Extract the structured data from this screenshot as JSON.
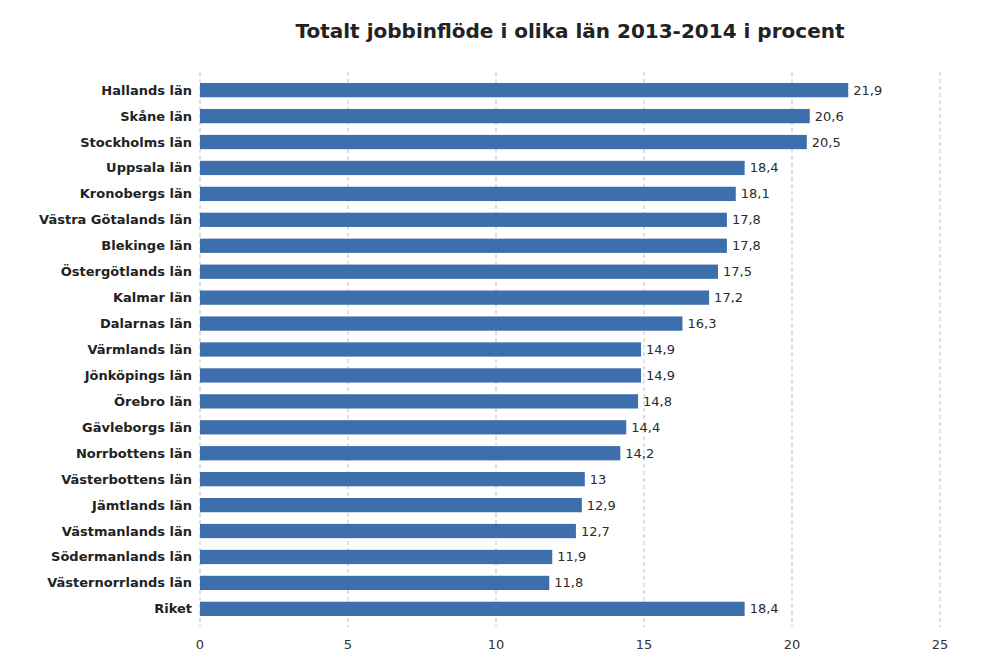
{
  "chart_data": {
    "type": "bar",
    "orientation": "horizontal",
    "title": "Totalt jobbinflöde i olika län 2013-2014 i procent",
    "categories": [
      "Riket",
      "Västernorrlands län",
      "Södermanlands län",
      "Västmanlands län",
      "Jämtlands län",
      "Västerbottens län",
      "Norrbottens län",
      "Gävleborgs län",
      "Örebro län",
      "Jönköpings län",
      "Värmlands län",
      "Dalarnas län",
      "Kalmar län",
      "Östergötlands län",
      "Blekinge län",
      "Västra Götalands län",
      "Kronobergs län",
      "Uppsala län",
      "Stockholms län",
      "Skåne län",
      "Hallands län"
    ],
    "values": [
      18.4,
      11.8,
      11.9,
      12.7,
      12.9,
      13.0,
      14.2,
      14.4,
      14.8,
      14.9,
      14.9,
      16.3,
      17.2,
      17.5,
      17.8,
      17.8,
      18.1,
      18.4,
      20.5,
      20.6,
      21.9
    ],
    "value_labels": [
      "18,4",
      "11,8",
      "11,9",
      "12,7",
      "12,9",
      "13",
      "14,2",
      "14,4",
      "14,8",
      "14,9",
      "14,9",
      "16,3",
      "17,2",
      "17,5",
      "17,8",
      "17,8",
      "18,1",
      "18,4",
      "20,5",
      "20,6",
      "21,9"
    ],
    "data_labels": true,
    "color": "#3d6fad",
    "xlim": [
      0,
      25
    ],
    "xticks": [
      0,
      5,
      10,
      15,
      20,
      25
    ],
    "grid": true
  }
}
